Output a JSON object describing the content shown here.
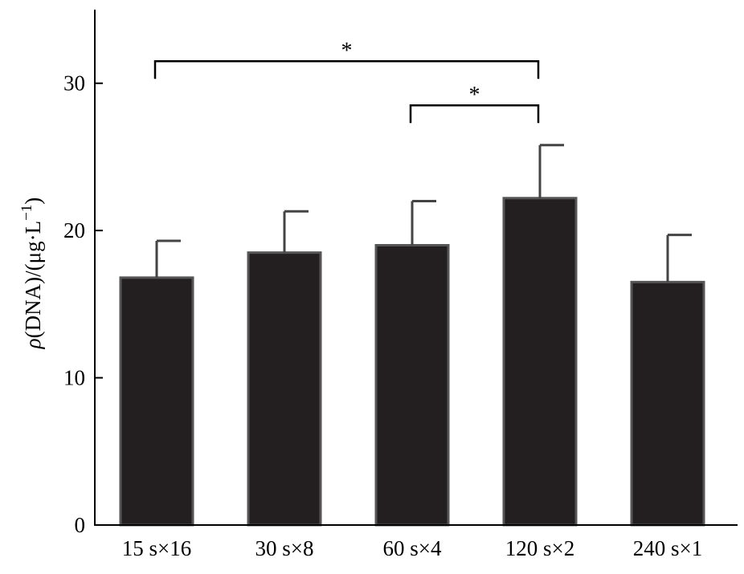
{
  "chart_data": {
    "type": "bar",
    "title": "",
    "xlabel": "",
    "ylabel": {
      "rho": "ρ",
      "main": "(DNA)/(μg·L",
      "exp": "−1",
      "close": ")"
    },
    "categories": [
      "15 s×16",
      "30 s×8",
      "60 s×4",
      "120 s×2",
      "240 s×1"
    ],
    "values": [
      16.8,
      18.5,
      19.0,
      22.2,
      16.5
    ],
    "errors": [
      2.5,
      2.8,
      3.0,
      3.6,
      3.2
    ],
    "ylim": [
      0,
      35
    ],
    "yticks": [
      0,
      10,
      20,
      30
    ],
    "grid": false,
    "legend": "none",
    "bar_color": "#231f20",
    "bar_edge_color": "#555555",
    "significance": [
      {
        "from": 0,
        "to": 3,
        "level": 31.5,
        "label": "*"
      },
      {
        "from": 2,
        "to": 3,
        "level": 28.5,
        "label": "*"
      }
    ]
  }
}
